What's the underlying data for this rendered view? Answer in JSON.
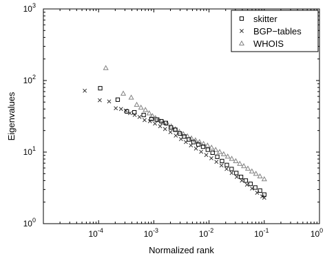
{
  "chart_data": {
    "type": "scatter",
    "title": "",
    "xlabel": "Normalized rank",
    "ylabel": "Eigenvalues",
    "xscale": "log",
    "yscale": "log",
    "xlim": [
      1e-05,
      1
    ],
    "ylim": [
      1,
      1000
    ],
    "grid": false,
    "legend_position": "top-right",
    "x_ticks": [
      {
        "value": 0.0001,
        "base": "10",
        "exp": "-4"
      },
      {
        "value": 0.001,
        "base": "10",
        "exp": "-3"
      },
      {
        "value": 0.01,
        "base": "10",
        "exp": "-2"
      },
      {
        "value": 0.1,
        "base": "10",
        "exp": "-1"
      },
      {
        "value": 1,
        "base": "10",
        "exp": "0"
      }
    ],
    "y_ticks": [
      {
        "value": 1,
        "base": "10",
        "exp": "0"
      },
      {
        "value": 10,
        "base": "10",
        "exp": "1"
      },
      {
        "value": 100,
        "base": "10",
        "exp": "2"
      },
      {
        "value": 1000,
        "base": "10",
        "exp": "3"
      }
    ],
    "series": [
      {
        "name": "skitter",
        "marker": "square",
        "color": "#000000",
        "x": [
          0.000107,
          0.000222,
          0.000325,
          0.000445,
          0.000655,
          0.000905,
          0.00113,
          0.00137,
          0.00165,
          0.00204,
          0.00245,
          0.00296,
          0.00356,
          0.00432,
          0.00525,
          0.0064,
          0.0078,
          0.0095,
          0.0116,
          0.0141,
          0.0172,
          0.021,
          0.0256,
          0.0312,
          0.038,
          0.0463,
          0.0564,
          0.0687,
          0.0838,
          0.1
        ],
        "values": [
          78,
          54,
          37,
          36,
          33,
          29,
          28.5,
          27,
          25.5,
          22,
          20.5,
          18.2,
          16.5,
          15,
          13.8,
          12.8,
          11.9,
          10.8,
          9.8,
          8.6,
          7.5,
          6.6,
          5.8,
          5.1,
          4.5,
          4,
          3.6,
          3.2,
          2.9,
          2.55
        ]
      },
      {
        "name": "BGP−tables",
        "marker": "x",
        "color": "#333333",
        "x": [
          5.62e-05,
          0.000105,
          0.000155,
          0.000205,
          0.000255,
          0.00031,
          0.00037,
          0.00045,
          0.00055,
          0.00068,
          0.00085,
          0.00105,
          0.0013,
          0.0016,
          0.002,
          0.0025,
          0.0031,
          0.0038,
          0.0047,
          0.0058,
          0.0072,
          0.0089,
          0.011,
          0.0136,
          0.0168,
          0.0208,
          0.0257,
          0.0318,
          0.0393,
          0.0486,
          0.0601,
          0.0743,
          0.0919,
          0.1
        ],
        "values": [
          72,
          53,
          51,
          41,
          40,
          38,
          35,
          33,
          31,
          28,
          27,
          25,
          23,
          21,
          19,
          17,
          15.2,
          13.8,
          12.4,
          11.2,
          10.1,
          9.1,
          8.2,
          7.3,
          6.5,
          5.8,
          5.1,
          4.5,
          4,
          3.5,
          3.1,
          2.7,
          2.4,
          2.3
        ]
      },
      {
        "name": "WHOIS",
        "marker": "triangle",
        "color": "#808080",
        "x": [
          0.000135,
          0.00028,
          0.00039,
          0.00049,
          0.000585,
          0.000705,
          0.000825,
          0.000945,
          0.00107,
          0.00125,
          0.00148,
          0.00175,
          0.00207,
          0.00245,
          0.0029,
          0.00343,
          0.00406,
          0.0048,
          0.00568,
          0.00672,
          0.00795,
          0.0094,
          0.0111,
          0.0132,
          0.0156,
          0.0184,
          0.0218,
          0.0258,
          0.0305,
          0.0361,
          0.0427,
          0.0505,
          0.0597,
          0.0707,
          0.0836,
          0.1
        ],
        "values": [
          150,
          66,
          58,
          46,
          42,
          39,
          35,
          32,
          30,
          28,
          26,
          25,
          23,
          21,
          19.3,
          17.9,
          16.7,
          15.6,
          14.7,
          13.9,
          13.1,
          12.4,
          11.6,
          10.8,
          10.1,
          9.4,
          8.7,
          8.1,
          7.5,
          6.9,
          6.4,
          5.9,
          5.4,
          5,
          4.6,
          4.2
        ]
      }
    ]
  }
}
